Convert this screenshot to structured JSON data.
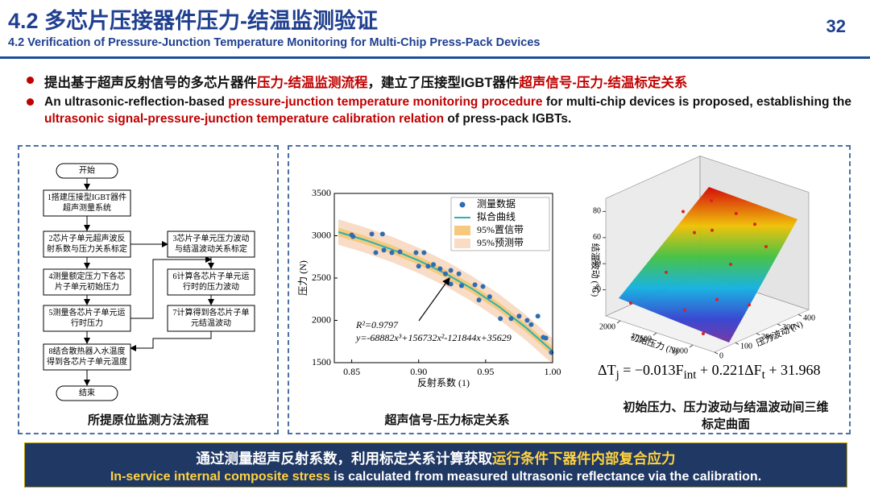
{
  "header": {
    "title": "4.2 多芯片压接器件压力-结温监测验证",
    "subtitle": "4.2 Verification of Pressure-Junction Temperature Monitoring for Multi-Chip Press-Pack Devices",
    "page": "32"
  },
  "bullets": [
    {
      "parts": [
        {
          "text": "提出基于超声反射信号的多芯片器件",
          "highlight": false
        },
        {
          "text": "压力-结温监测流程",
          "highlight": true
        },
        {
          "text": "，建立了压接型IGBT器件",
          "highlight": false
        },
        {
          "text": "超声信号-压力-结温标定关系",
          "highlight": true
        }
      ]
    },
    {
      "parts": [
        {
          "text": "An ultrasonic-reflection-based ",
          "highlight": false
        },
        {
          "text": "pressure-junction temperature monitoring procedure",
          "highlight": true
        },
        {
          "text": " for multi-chip devices is proposed, establishing the ",
          "highlight": false
        },
        {
          "text": "ultrasonic signal-pressure-junction temperature calibration relation",
          "highlight": true
        },
        {
          "text": " of press-pack IGBTs.",
          "highlight": false
        }
      ]
    }
  ],
  "flowchart": {
    "nodes": [
      {
        "lines": [
          "开始"
        ]
      },
      {
        "lines": [
          "1搭建压接型IGBT器件",
          "超声测量系统"
        ]
      },
      {
        "lines": [
          "2芯片子单元超声波反",
          "射系数与压力关系标定"
        ]
      },
      {
        "lines": [
          "3芯片子单元压力波动",
          "与结温波动关系标定"
        ]
      },
      {
        "lines": [
          "4测量额定压力下各芯",
          "片子单元初始压力"
        ]
      },
      {
        "lines": [
          "5测量各芯片子单元运",
          "行时压力"
        ]
      },
      {
        "lines": [
          "6计算各芯片子单元运",
          "行时的压力波动"
        ]
      },
      {
        "lines": [
          "7计算得到各芯片子单",
          "元结温波动"
        ]
      },
      {
        "lines": [
          "8结合散热器入水温度",
          "得到各芯片子单元温度"
        ]
      },
      {
        "lines": [
          "结束"
        ]
      }
    ],
    "caption": "所提原位监测方法流程"
  },
  "chart_data": [
    {
      "type": "scatter",
      "caption": "超声信号-压力标定关系",
      "xlabel": "反射系数 (1)",
      "ylabel": "压力 (N)",
      "xlim": [
        0.837,
        1.0
      ],
      "ylim": [
        1500,
        3500
      ],
      "xticks": [
        0.85,
        {
          "value": 0.9,
          "label": "0.90"
        },
        0.95,
        {
          "value": 1.0,
          "label": "1.00"
        }
      ],
      "yticks": [
        1500,
        2000,
        2500,
        3000,
        3500
      ],
      "annotations": [
        "R²=0.9797",
        "y=-68882x³+156732x²-121844x+35629"
      ],
      "series": [
        {
          "name": "测量数据",
          "type": "scatter",
          "color": "#2e6db4",
          "x": [
            0.85,
            0.851,
            0.865,
            0.873,
            0.868,
            0.874,
            0.88,
            0.886,
            0.898,
            0.904,
            0.9,
            0.907,
            0.911,
            0.916,
            0.92,
            0.924,
            0.93,
            0.924,
            0.932,
            0.942,
            0.948,
            0.945,
            0.953,
            0.961,
            0.969,
            0.975,
            0.981,
            0.984,
            0.989,
            0.993,
            0.995,
            0.999
          ],
          "values": [
            3010,
            2990,
            3020,
            3020,
            2800,
            2830,
            2800,
            2810,
            2800,
            2800,
            2640,
            2640,
            2660,
            2610,
            2550,
            2590,
            2550,
            2430,
            2410,
            2420,
            2400,
            2240,
            2280,
            2020,
            2020,
            2050,
            2000,
            1950,
            2050,
            1800,
            1790,
            1620
          ]
        },
        {
          "name": "拟合曲线",
          "type": "line",
          "color": "#27b3b0",
          "x": [
            0.84,
            0.86,
            0.88,
            0.9,
            0.92,
            0.94,
            0.96,
            0.98,
            1.0
          ],
          "values": [
            3044,
            2949,
            2838,
            2707,
            2554,
            2372,
            2161,
            1916,
            1635
          ]
        },
        {
          "name": "95%置信带",
          "type": "band",
          "color": "#f6c97f",
          "x": [
            0.84,
            0.86,
            0.88,
            0.9,
            0.92,
            0.94,
            0.96,
            0.98,
            1.0
          ],
          "lower": [
            2994,
            2899,
            2788,
            2657,
            2504,
            2322,
            2111,
            1866,
            1585
          ],
          "upper": [
            3094,
            2999,
            2888,
            2757,
            2604,
            2422,
            2211,
            1966,
            1685
          ]
        },
        {
          "name": "95%预测带",
          "type": "band",
          "color": "#f8dcc6",
          "x": [
            0.84,
            0.86,
            0.88,
            0.9,
            0.92,
            0.94,
            0.96,
            0.98,
            1.0
          ],
          "lower": [
            2894,
            2799,
            2688,
            2557,
            2404,
            2222,
            2011,
            1766,
            1485
          ],
          "upper": [
            3194,
            3099,
            2988,
            2857,
            2704,
            2522,
            2311,
            2066,
            1785
          ]
        }
      ]
    },
    {
      "type": "scatter3d",
      "caption": "初始压力、压力波动与结温波动间三维标定曲面",
      "xlabel": "初始压力 (N)",
      "ylabel": "压力波动 (N)",
      "zlabel": "结温波动 (℃)",
      "xlim": [
        1800,
        3300
      ],
      "ylim": [
        0,
        450
      ],
      "zlim": [
        0,
        90
      ],
      "xticks": [
        2000,
        2500,
        3000
      ],
      "yticks": [
        0,
        100,
        200,
        300,
        400
      ],
      "zticks": [
        20,
        40,
        60,
        80
      ],
      "equation": [
        {
          "text": "ΔT",
          "sub": false
        },
        {
          "text": "j",
          "sub": true
        },
        {
          "text": " = −0.013",
          "sub": false
        },
        {
          "text": "F",
          "sub": false
        },
        {
          "text": "int",
          "sub": true
        },
        {
          "text": " + 0.221Δ",
          "sub": false
        },
        {
          "text": "F",
          "sub": false
        },
        {
          "text": "t",
          "sub": true
        },
        {
          "text": " + 31.968",
          "sub": false
        }
      ],
      "series": [
        {
          "name": "测量数据",
          "color": "#e02020",
          "x": [
            2000,
            2200,
            2400,
            2600,
            2800,
            3000,
            2100,
            2500,
            3200,
            2300,
            2700,
            3000,
            2000,
            2900
          ],
          "y": [
            50,
            150,
            300,
            100,
            250,
            350,
            400,
            380,
            200,
            250,
            400,
            50,
            300,
            150
          ],
          "values": [
            10,
            30,
            55,
            12,
            40,
            50,
            65,
            64,
            20,
            55,
            58,
            5,
            62,
            22
          ]
        }
      ]
    }
  ],
  "footer": {
    "zh": [
      {
        "text": "通过测量超声反射系数，利用标定关系计算获取",
        "highlight": false
      },
      {
        "text": "运行条件下器件内部复合应力",
        "highlight": true
      }
    ],
    "en": [
      {
        "text": "In-service internal composite stress",
        "highlight": true
      },
      {
        "text": " is calculated from measured ultrasonic reflectance via the calibration.",
        "highlight": false
      }
    ]
  }
}
